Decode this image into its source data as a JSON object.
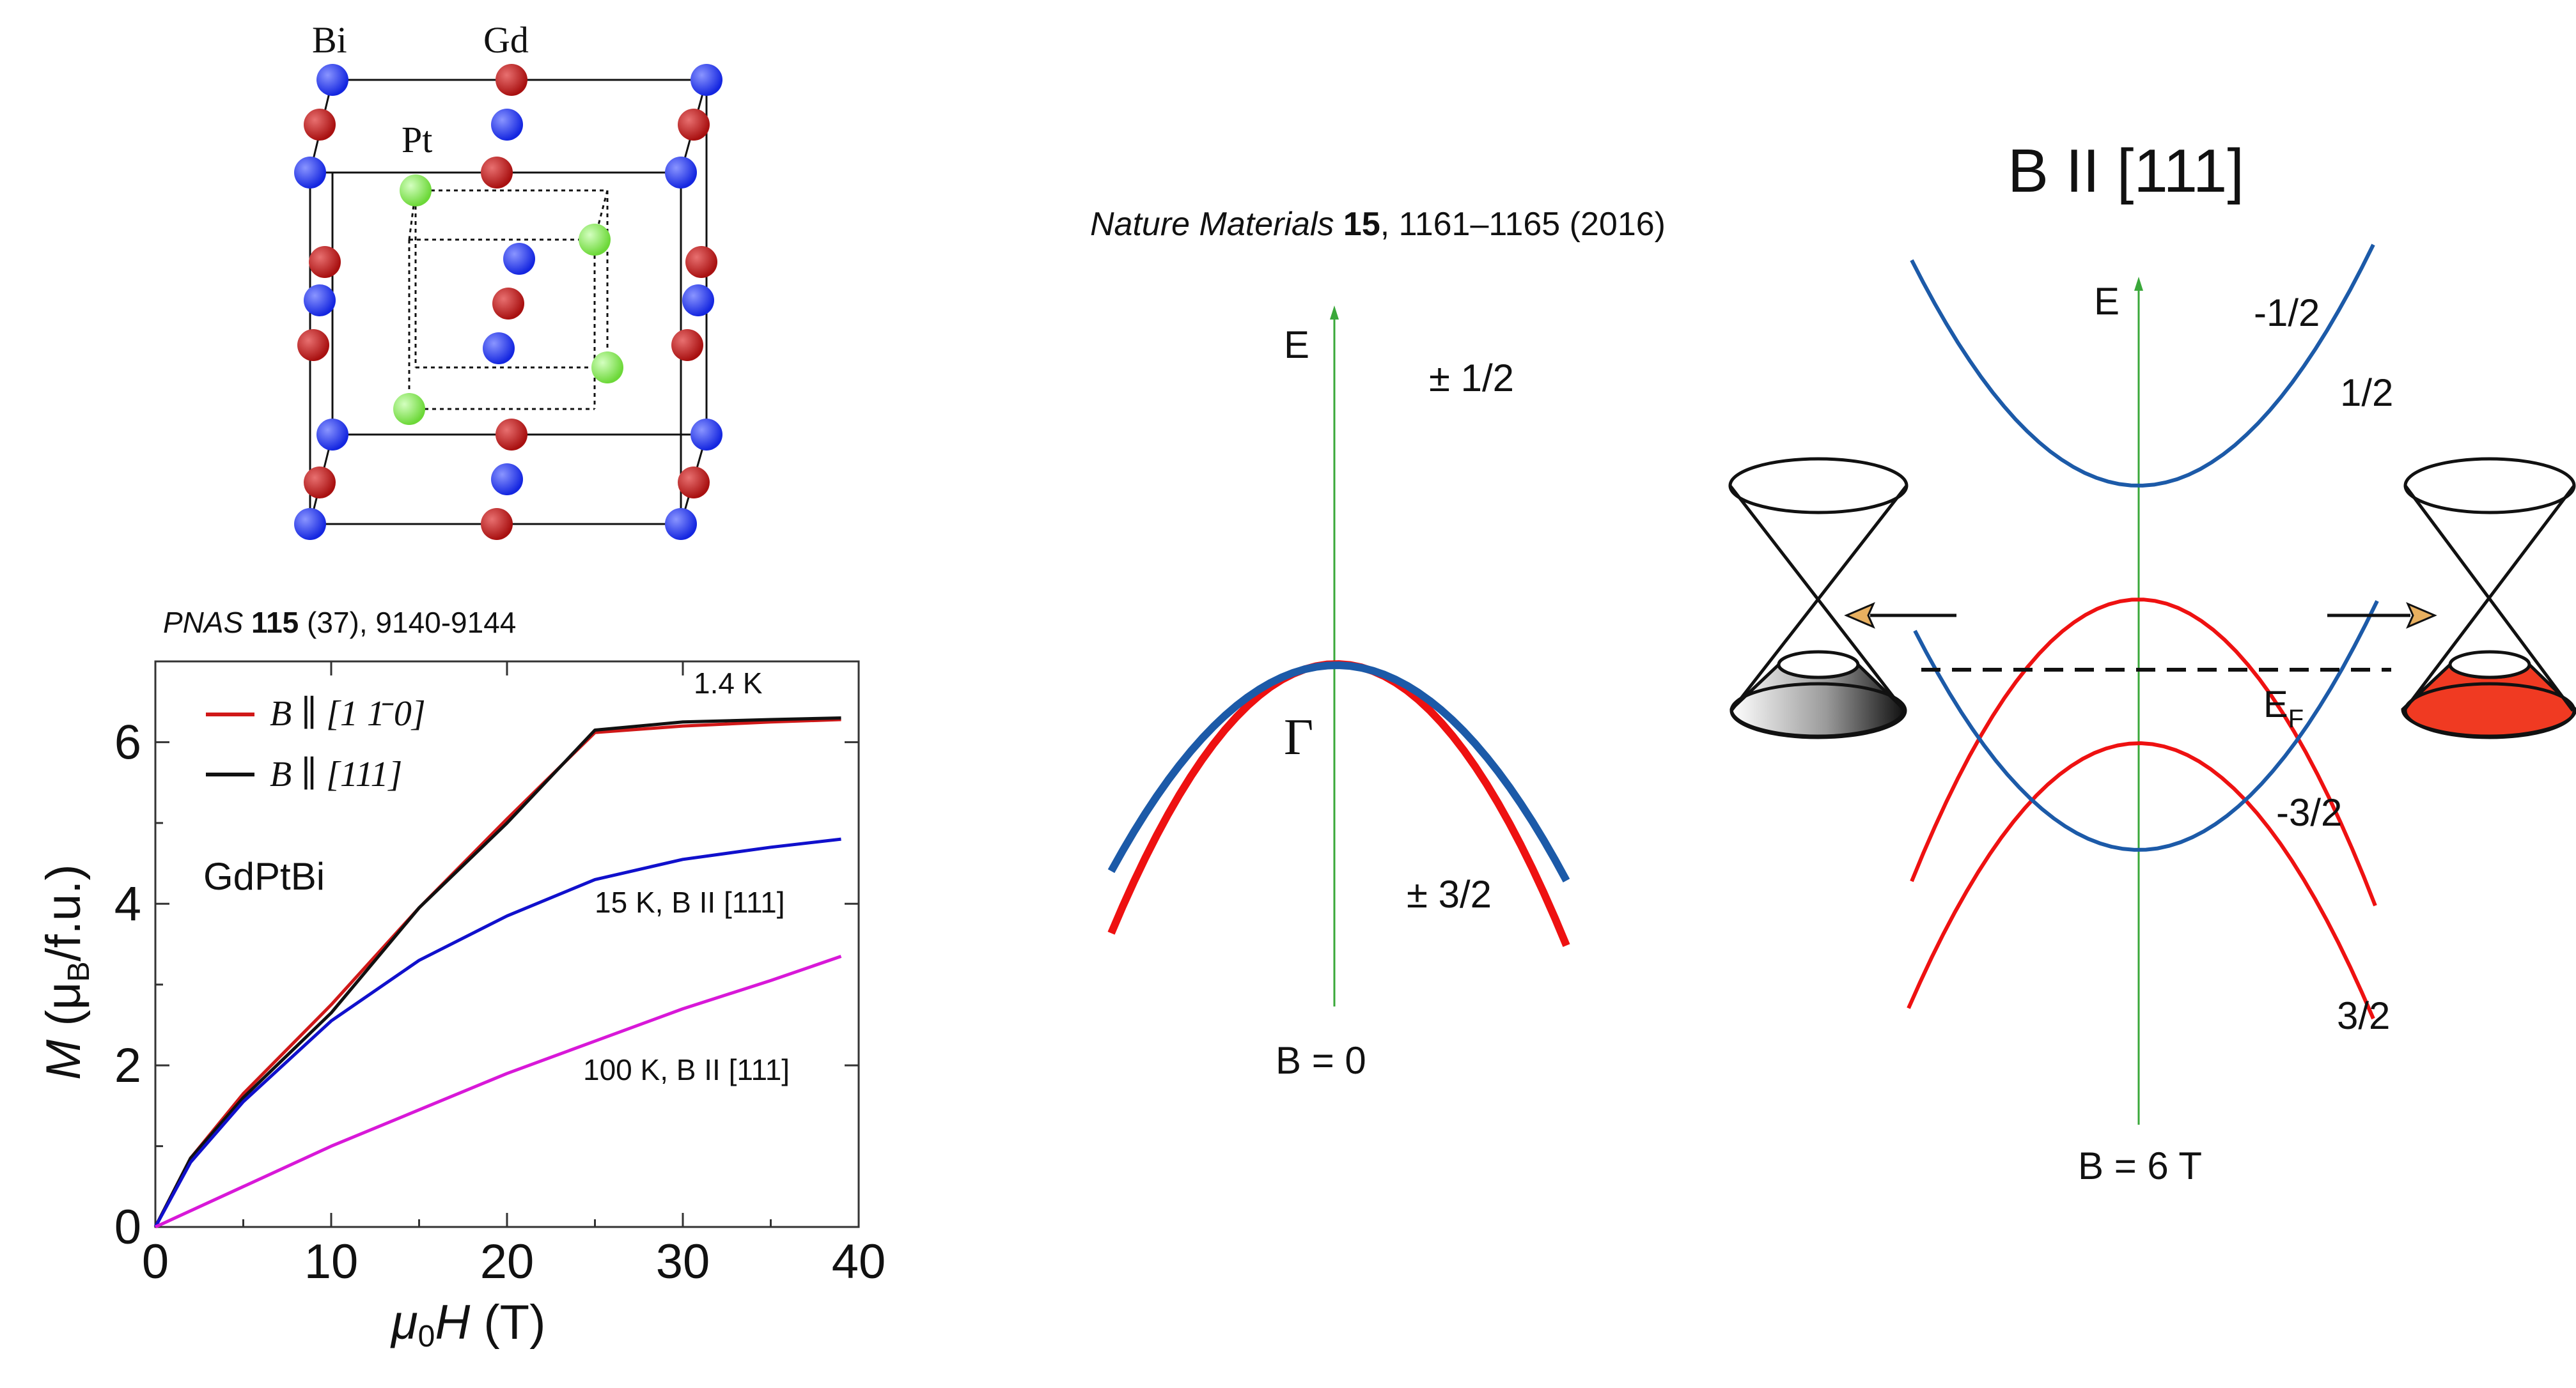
{
  "crystal": {
    "label_bi": "Bi",
    "label_gd": "Gd",
    "label_pt": "Pt",
    "colors": {
      "bi": "#2233ee",
      "gd": "#c02020",
      "pt": "#77e040"
    }
  },
  "pnas_citation": {
    "journal": "PNAS",
    "volume": "115",
    "rest": " (37), 9140-9144"
  },
  "nature_citation": {
    "journal": "Nature Materials",
    "volume": "15",
    "rest": ", 1161–1165 (2016)"
  },
  "magnetization_chart": {
    "legend_1": "B ∥ [1 1̄ 0]",
    "legend_2": "B ∥ [111]",
    "material": "GdPtBi",
    "ann_1p4k": "1.4 K",
    "ann_15k": "15 K, B II [111]",
    "ann_100k": "100 K, B II [111]",
    "xlabel": "μ0H (T)",
    "ylabel": "M (μB/f.u.)"
  },
  "chart_data": {
    "type": "line",
    "xlabel": "μ0H (T)",
    "ylabel": "M (μB/f.u.)",
    "xlim": [
      0,
      40
    ],
    "ylim": [
      0,
      7
    ],
    "xticks": [
      0,
      10,
      20,
      30,
      40
    ],
    "yticks": [
      0,
      2,
      4,
      6
    ],
    "legend_position": "top-left",
    "series": [
      {
        "name": "B ∥ [1 1̄ 0]",
        "color": "#d01818",
        "x": [
          0,
          2,
          5,
          10,
          15,
          20,
          25,
          30,
          35,
          39
        ],
        "y": [
          0,
          0.85,
          1.65,
          2.75,
          3.95,
          5.05,
          6.12,
          6.2,
          6.25,
          6.28
        ]
      },
      {
        "name": "B ∥ [111]",
        "color": "#111111",
        "x": [
          0,
          2,
          5,
          10,
          15,
          20,
          25,
          30,
          35,
          39
        ],
        "y": [
          0,
          0.85,
          1.6,
          2.65,
          3.95,
          5.0,
          6.15,
          6.25,
          6.28,
          6.3
        ]
      },
      {
        "name": "15 K, B II [111]",
        "color": "#1010cc",
        "x": [
          0,
          2,
          5,
          10,
          15,
          20,
          25,
          30,
          35,
          39
        ],
        "y": [
          0,
          0.8,
          1.55,
          2.55,
          3.3,
          3.85,
          4.3,
          4.55,
          4.7,
          4.8
        ]
      },
      {
        "name": "100 K, B II [111]",
        "color": "#d818d8",
        "x": [
          0,
          5,
          10,
          15,
          20,
          25,
          30,
          35,
          39
        ],
        "y": [
          0,
          0.5,
          1.0,
          1.45,
          1.9,
          2.3,
          2.7,
          3.05,
          3.35
        ]
      }
    ]
  },
  "band_b0": {
    "axis_label": "E",
    "gamma": "Γ",
    "label_top": "± 1/2",
    "label_bottom": "± 3/2",
    "caption": "B = 0"
  },
  "band_b6": {
    "title": "B II [111]",
    "axis_label": "E",
    "label_m12": "-1/2",
    "label_12": "1/2",
    "label_m32": "-3/2",
    "label_32": "3/2",
    "fermi": "E",
    "fermi_sub": "F",
    "caption": "B = 6 T"
  }
}
